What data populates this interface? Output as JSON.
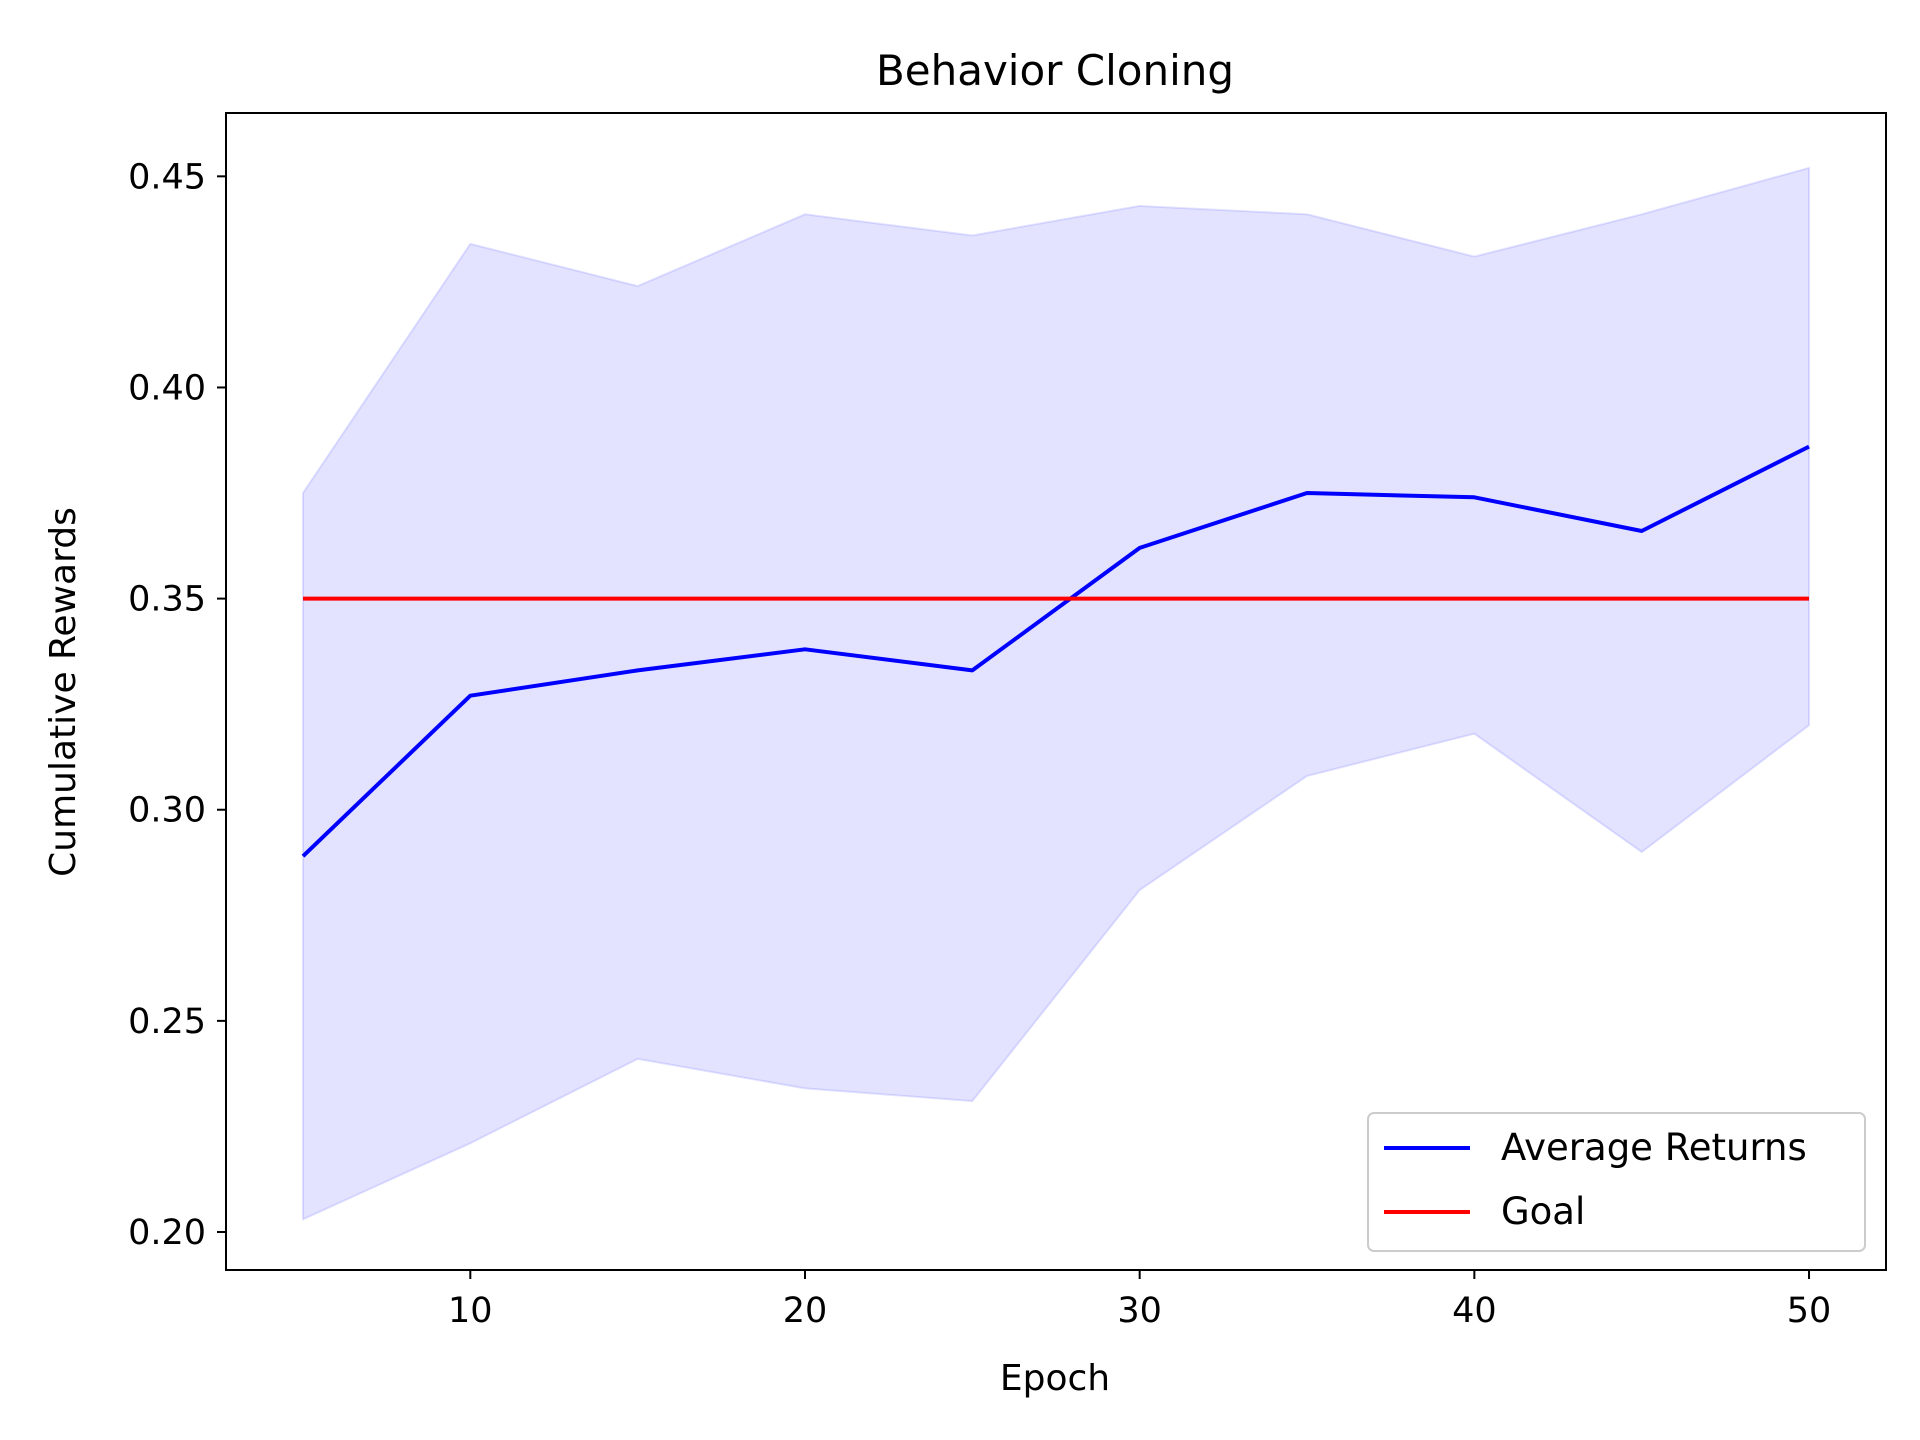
{
  "chart_data": {
    "type": "line",
    "title": "Behavior Cloning",
    "xlabel": "Epoch",
    "ylabel": "Cumulative Rewards",
    "xlim": [
      2.7,
      52.3
    ],
    "ylim": [
      0.191,
      0.465
    ],
    "xticks": [
      10,
      20,
      30,
      40,
      50
    ],
    "xtick_labels": [
      "10",
      "20",
      "30",
      "40",
      "50"
    ],
    "yticks": [
      0.2,
      0.25,
      0.3,
      0.35,
      0.4,
      0.45
    ],
    "ytick_labels": [
      "0.20",
      "0.25",
      "0.30",
      "0.35",
      "0.40",
      "0.45"
    ],
    "grid": false,
    "legend_position": "lower right",
    "x": [
      5,
      10,
      15,
      20,
      25,
      30,
      35,
      40,
      45,
      50
    ],
    "series": [
      {
        "name": "Average Returns",
        "color": "#0000ff",
        "values": [
          0.289,
          0.327,
          0.333,
          0.338,
          0.333,
          0.362,
          0.375,
          0.374,
          0.366,
          0.386
        ]
      },
      {
        "name": "Goal",
        "color": "#ff0000",
        "values": [
          0.35,
          0.35,
          0.35,
          0.35,
          0.35,
          0.35,
          0.35,
          0.35,
          0.35,
          0.35
        ]
      }
    ],
    "band": {
      "color": "#0000ff",
      "opacity": 0.11,
      "lower": [
        0.203,
        0.221,
        0.241,
        0.234,
        0.231,
        0.281,
        0.308,
        0.318,
        0.29,
        0.32
      ],
      "upper": [
        0.375,
        0.434,
        0.424,
        0.441,
        0.436,
        0.443,
        0.441,
        0.431,
        0.441,
        0.452
      ]
    }
  }
}
